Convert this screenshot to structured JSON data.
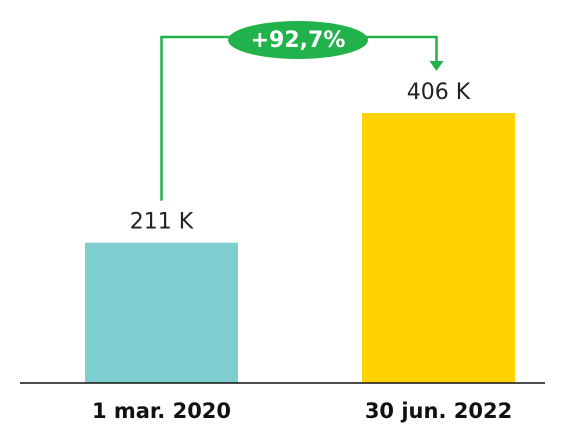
{
  "chart_data": {
    "type": "bar",
    "categories": [
      "1 mar. 2020",
      "30 jun. 2022"
    ],
    "values": [
      211,
      406
    ],
    "value_labels": [
      "211 K",
      "406 K"
    ],
    "colors": [
      "#7ecdcf",
      "#ffd200"
    ],
    "annotation": "+92,7%",
    "annotation_color": "#22b24c"
  }
}
